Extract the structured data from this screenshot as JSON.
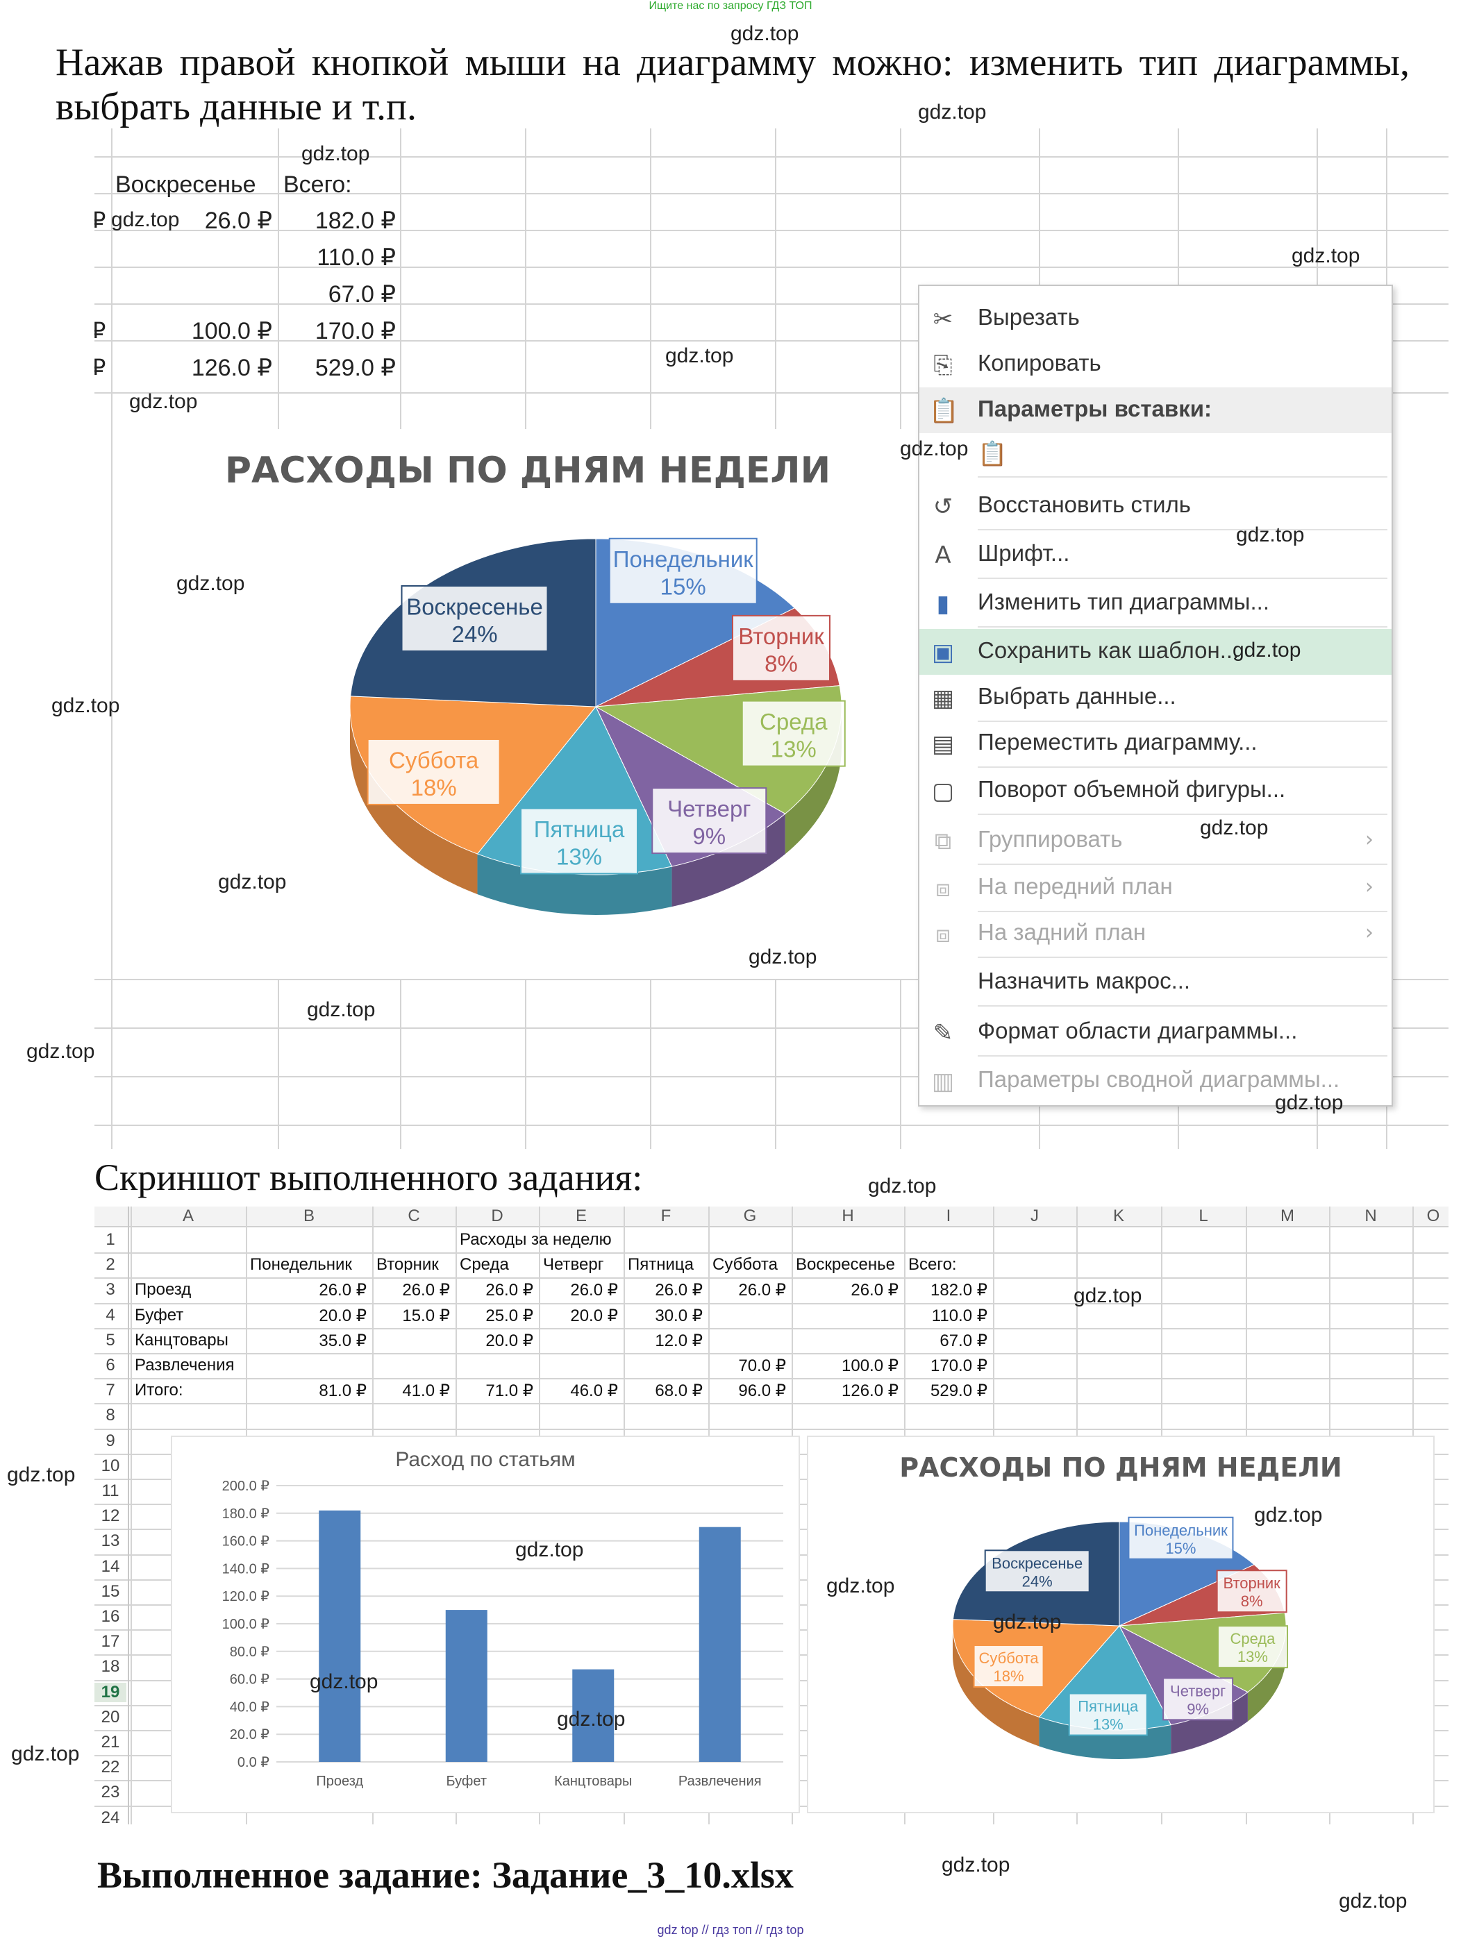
{
  "top_note": "Ищите нас по запросу ГДЗ ТОП",
  "watermark": "gdz.top",
  "paragraph": "Нажав правой кнопкой мыши на диаграмму можно: изменить тип диаграммы, выбрать данные и т.п.",
  "top_sheet": {
    "headers": [
      "Воскресенье",
      "Всего:"
    ],
    "rows": [
      {
        "a": "₽",
        "sun": "26.0 ₽",
        "total": "182.0 ₽"
      },
      {
        "a": "",
        "sun": "",
        "total": "110.0 ₽"
      },
      {
        "a": "",
        "sun": "",
        "total": "67.0 ₽"
      },
      {
        "a": "₽",
        "sun": "100.0 ₽",
        "total": "170.0 ₽"
      },
      {
        "a": "₽",
        "sun": "126.0 ₽",
        "total": "529.0 ₽"
      }
    ]
  },
  "big_pie": {
    "title": "РАСХОДЫ ПО ДНЯМ НЕДЕЛИ",
    "slices": [
      {
        "name": "Понедельник",
        "pct": "15%",
        "value": 15,
        "color": "#4f81c6"
      },
      {
        "name": "Вторник",
        "pct": "8%",
        "value": 8,
        "color": "#c0504d"
      },
      {
        "name": "Среда",
        "pct": "13%",
        "value": 13,
        "color": "#9bbb59"
      },
      {
        "name": "Четверг",
        "pct": "9%",
        "value": 9,
        "color": "#8064a2"
      },
      {
        "name": "Пятница",
        "pct": "13%",
        "value": 13,
        "color": "#4bacc6"
      },
      {
        "name": "Суббота",
        "pct": "18%",
        "value": 18,
        "color": "#f79646"
      },
      {
        "name": "Воскресенье",
        "pct": "24%",
        "value": 24,
        "color": "#2c4d75"
      }
    ]
  },
  "context_menu": {
    "items": [
      {
        "label": "Вырезать",
        "icon": "scissors-icon",
        "glyph": "✂",
        "disabled": false,
        "arrow": false
      },
      {
        "label": "Копировать",
        "icon": "copy-icon",
        "glyph": "⎘",
        "disabled": false,
        "arrow": false
      },
      {
        "label": "Параметры вставки:",
        "icon": "paste-icon",
        "glyph": "📋",
        "disabled": false,
        "arrow": false,
        "header": true
      },
      {
        "label": "",
        "icon": "paste-option-icon",
        "glyph": "📋",
        "disabled": false,
        "arrow": false
      },
      {
        "label": "Восстановить стиль",
        "icon": "reset-style-icon",
        "glyph": "↺",
        "disabled": false,
        "arrow": false
      },
      {
        "label": "Шрифт...",
        "icon": "font-icon",
        "glyph": "A",
        "disabled": false,
        "arrow": false
      },
      {
        "label": "Изменить тип диаграммы...",
        "icon": "chart-type-icon",
        "glyph": "▮",
        "disabled": false,
        "arrow": false
      },
      {
        "label": "Сохранить как шаблон...",
        "icon": "save-template-icon",
        "glyph": "▣",
        "disabled": false,
        "arrow": false,
        "highlight": true
      },
      {
        "label": "Выбрать данные...",
        "icon": "select-data-icon",
        "glyph": "▦",
        "disabled": false,
        "arrow": false
      },
      {
        "label": "Переместить диаграмму...",
        "icon": "move-chart-icon",
        "glyph": "▤",
        "disabled": false,
        "arrow": false
      },
      {
        "label": "Поворот объемной фигуры...",
        "icon": "rotate-3d-icon",
        "glyph": "▢",
        "disabled": false,
        "arrow": false
      },
      {
        "label": "Группировать",
        "icon": "group-icon",
        "glyph": "⧉",
        "disabled": true,
        "arrow": true
      },
      {
        "label": "На передний план",
        "icon": "bring-front-icon",
        "glyph": "⧈",
        "disabled": true,
        "arrow": true
      },
      {
        "label": "На задний план",
        "icon": "send-back-icon",
        "glyph": "⧈",
        "disabled": true,
        "arrow": true
      },
      {
        "label": "Назначить макрос...",
        "icon": "macro-icon",
        "glyph": "",
        "disabled": false,
        "arrow": false
      },
      {
        "label": "Формат области диаграммы...",
        "icon": "format-area-icon",
        "glyph": "✎",
        "disabled": false,
        "arrow": false
      },
      {
        "label": "Параметры сводной диаграммы...",
        "icon": "pivot-options-icon",
        "glyph": "▥",
        "disabled": true,
        "arrow": false
      }
    ]
  },
  "screenshot_caption": "Скриншот выполненного задания:",
  "sheet": {
    "columns": [
      "A",
      "B",
      "C",
      "D",
      "E",
      "F",
      "G",
      "H",
      "I",
      "J",
      "K",
      "L",
      "M",
      "N",
      "O"
    ],
    "row_numbers": [
      "1",
      "2",
      "3",
      "4",
      "5",
      "6",
      "7",
      "8",
      "9",
      "10",
      "11",
      "12",
      "13",
      "14",
      "15",
      "16",
      "17",
      "18",
      "19",
      "20",
      "21",
      "22",
      "23",
      "24"
    ],
    "title": "Расходы за неделю",
    "header_row": [
      "Понедельник",
      "Вторник",
      "Среда",
      "Четверг",
      "Пятница",
      "Суббота",
      "Воскресенье",
      "Всего:"
    ],
    "rows": [
      {
        "label": "Проезд",
        "values": [
          "26.0 ₽",
          "26.0 ₽",
          "26.0 ₽",
          "26.0 ₽",
          "26.0 ₽",
          "26.0 ₽",
          "26.0 ₽",
          "182.0 ₽"
        ]
      },
      {
        "label": "Буфет",
        "values": [
          "20.0 ₽",
          "15.0 ₽",
          "25.0 ₽",
          "20.0 ₽",
          "30.0 ₽",
          "",
          "",
          "110.0 ₽"
        ]
      },
      {
        "label": "Канцтовары",
        "values": [
          "35.0 ₽",
          "",
          "20.0 ₽",
          "",
          "12.0 ₽",
          "",
          "",
          "67.0 ₽"
        ]
      },
      {
        "label": "Развлечения",
        "values": [
          "",
          "",
          "",
          "",
          "",
          "70.0 ₽",
          "100.0 ₽",
          "170.0 ₽"
        ]
      },
      {
        "label": "Итого:",
        "values": [
          "81.0 ₽",
          "41.0 ₽",
          "71.0 ₽",
          "46.0 ₽",
          "68.0 ₽",
          "96.0 ₽",
          "126.0 ₽",
          "529.0 ₽"
        ]
      }
    ]
  },
  "chart_data": [
    {
      "type": "bar",
      "title": "Расход по статьям",
      "categories": [
        "Проезд",
        "Буфет",
        "Канцтовары",
        "Развлечения"
      ],
      "values": [
        182,
        110,
        67,
        170
      ],
      "yticks": [
        "0.0 ₽",
        "20.0 ₽",
        "40.0 ₽",
        "60.0 ₽",
        "80.0 ₽",
        "100.0 ₽",
        "120.0 ₽",
        "140.0 ₽",
        "160.0 ₽",
        "180.0 ₽",
        "200.0 ₽"
      ],
      "ylim": [
        0,
        200
      ],
      "color": "#4f81bd",
      "grid": true
    },
    {
      "type": "pie",
      "title": "РАСХОДЫ ПО ДНЯМ НЕДЕЛИ",
      "categories": [
        "Понедельник",
        "Вторник",
        "Среда",
        "Четверг",
        "Пятница",
        "Суббота",
        "Воскресенье"
      ],
      "values": [
        15,
        8,
        13,
        9,
        13,
        18,
        24
      ],
      "labels": [
        "15%",
        "8%",
        "13%",
        "9%",
        "13%",
        "18%",
        "24%"
      ]
    }
  ],
  "footer_title": "Выполненное задание: Задание_3_10.xlsx",
  "bottom_note": "gdz top  //  гдз топ  //  гдз top"
}
